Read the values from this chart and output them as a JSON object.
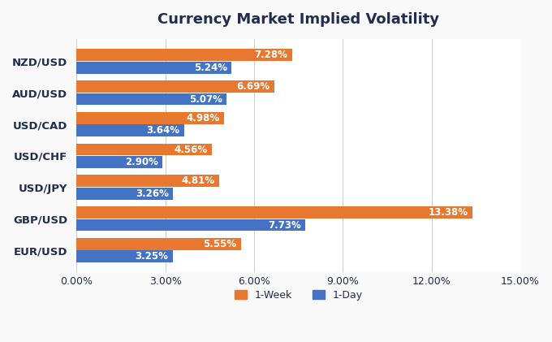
{
  "title": "Currency Market Implied Volatility",
  "categories": [
    "EUR/USD",
    "GBP/USD",
    "USD/JPY",
    "USD/CHF",
    "USD/CAD",
    "AUD/USD",
    "NZD/USD"
  ],
  "week1": [
    5.55,
    13.38,
    4.81,
    4.56,
    4.98,
    6.69,
    7.28
  ],
  "day1": [
    3.25,
    7.73,
    3.26,
    2.9,
    3.64,
    5.07,
    5.24
  ],
  "color_week": "#E87830",
  "color_day": "#4472C4",
  "xlim": [
    0,
    15.0
  ],
  "xtick_vals": [
    0,
    3,
    6,
    9,
    12,
    15
  ],
  "xtick_labels": [
    "0.00%",
    "3.00%",
    "6.00%",
    "9.00%",
    "12.00%",
    "15.00%"
  ],
  "legend_week": "1-Week",
  "legend_day": "1-Day",
  "bar_height": 0.38,
  "bar_gap": 0.02,
  "background_color": "#F9F9F9",
  "plot_bg_color": "#FFFFFF",
  "title_color": "#1F2D4E",
  "label_color": "#1F2D4E",
  "grid_color": "#D0D0D0",
  "title_fontsize": 13,
  "label_fontsize": 8.5,
  "tick_fontsize": 9,
  "ytick_fontsize": 9.5
}
